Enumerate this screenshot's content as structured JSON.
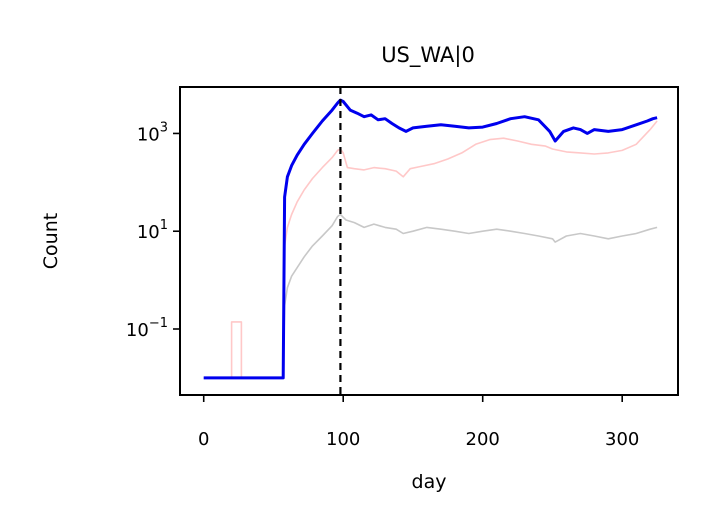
{
  "chart_data": {
    "type": "line",
    "title": "US_WA|0",
    "xlabel": "day",
    "ylabel": "Count",
    "xlim": [
      -17,
      340
    ],
    "ylim_log10": [
      -2.35,
      3.95
    ],
    "yscale": "log",
    "x_ticks": [
      0,
      100,
      200,
      300
    ],
    "x_tick_labels": [
      "0",
      "100",
      "200",
      "300"
    ],
    "y_ticks_log10": [
      -1,
      1,
      3
    ],
    "y_tick_labels": [
      {
        "base": "10",
        "exp": "−1"
      },
      {
        "base": "10",
        "exp": "1"
      },
      {
        "base": "10",
        "exp": "3"
      }
    ],
    "vline": {
      "x": 98,
      "style": "dashed",
      "color": "#000000"
    },
    "grid": false,
    "legend": "none",
    "series": [
      {
        "color": "#c8c8c8",
        "line_width": 1.6,
        "points": [
          [
            0,
            0.01
          ],
          [
            57,
            0.01
          ],
          [
            58,
            0.3
          ],
          [
            60,
            0.7
          ],
          [
            63,
            1.2
          ],
          [
            67,
            1.8
          ],
          [
            72,
            3.0
          ],
          [
            78,
            5.0
          ],
          [
            85,
            8.0
          ],
          [
            92,
            13
          ],
          [
            96,
            20
          ],
          [
            98,
            22
          ],
          [
            102,
            17
          ],
          [
            108,
            15
          ],
          [
            115,
            12
          ],
          [
            122,
            14
          ],
          [
            130,
            12
          ],
          [
            138,
            11
          ],
          [
            143,
            9
          ],
          [
            150,
            10
          ],
          [
            160,
            12
          ],
          [
            170,
            11
          ],
          [
            180,
            10
          ],
          [
            190,
            9
          ],
          [
            200,
            10
          ],
          [
            210,
            11
          ],
          [
            220,
            10
          ],
          [
            230,
            9
          ],
          [
            240,
            8
          ],
          [
            250,
            7
          ],
          [
            252,
            6
          ],
          [
            260,
            8
          ],
          [
            270,
            9
          ],
          [
            280,
            8
          ],
          [
            290,
            7
          ],
          [
            300,
            8
          ],
          [
            310,
            9
          ],
          [
            320,
            11
          ],
          [
            325,
            12
          ]
        ]
      },
      {
        "color": "#ffc8c8",
        "line_width": 1.6,
        "points": [
          [
            0,
            0.01
          ],
          [
            20,
            0.01
          ],
          [
            20,
            0.14
          ],
          [
            27,
            0.14
          ],
          [
            27,
            0.01
          ],
          [
            57,
            0.01
          ],
          [
            58,
            5
          ],
          [
            60,
            12
          ],
          [
            63,
            22
          ],
          [
            67,
            40
          ],
          [
            72,
            70
          ],
          [
            78,
            120
          ],
          [
            85,
            200
          ],
          [
            92,
            320
          ],
          [
            96,
            450
          ],
          [
            98,
            480
          ],
          [
            100,
            400
          ],
          [
            103,
            200
          ],
          [
            108,
            190
          ],
          [
            115,
            180
          ],
          [
            122,
            200
          ],
          [
            130,
            190
          ],
          [
            138,
            170
          ],
          [
            143,
            130
          ],
          [
            148,
            190
          ],
          [
            155,
            210
          ],
          [
            165,
            240
          ],
          [
            175,
            300
          ],
          [
            185,
            400
          ],
          [
            195,
            600
          ],
          [
            205,
            750
          ],
          [
            215,
            800
          ],
          [
            225,
            700
          ],
          [
            235,
            600
          ],
          [
            245,
            550
          ],
          [
            250,
            480
          ],
          [
            253,
            460
          ],
          [
            260,
            420
          ],
          [
            270,
            400
          ],
          [
            280,
            380
          ],
          [
            290,
            400
          ],
          [
            300,
            450
          ],
          [
            310,
            600
          ],
          [
            320,
            1200
          ],
          [
            325,
            1800
          ]
        ]
      },
      {
        "color": "#0000ee",
        "line_width": 3.0,
        "points": [
          [
            0,
            0.01
          ],
          [
            57,
            0.01
          ],
          [
            58,
            50
          ],
          [
            60,
            130
          ],
          [
            63,
            220
          ],
          [
            67,
            360
          ],
          [
            72,
            600
          ],
          [
            78,
            1000
          ],
          [
            85,
            1800
          ],
          [
            92,
            3000
          ],
          [
            96,
            4200
          ],
          [
            98,
            4800
          ],
          [
            100,
            4500
          ],
          [
            105,
            3000
          ],
          [
            110,
            2600
          ],
          [
            115,
            2200
          ],
          [
            120,
            2400
          ],
          [
            125,
            1900
          ],
          [
            130,
            2000
          ],
          [
            135,
            1600
          ],
          [
            140,
            1300
          ],
          [
            145,
            1100
          ],
          [
            150,
            1300
          ],
          [
            160,
            1400
          ],
          [
            170,
            1500
          ],
          [
            180,
            1400
          ],
          [
            190,
            1300
          ],
          [
            200,
            1350
          ],
          [
            210,
            1600
          ],
          [
            220,
            2000
          ],
          [
            230,
            2200
          ],
          [
            240,
            1900
          ],
          [
            248,
            1100
          ],
          [
            252,
            700
          ],
          [
            258,
            1100
          ],
          [
            265,
            1300
          ],
          [
            270,
            1200
          ],
          [
            275,
            1000
          ],
          [
            280,
            1200
          ],
          [
            290,
            1100
          ],
          [
            300,
            1200
          ],
          [
            310,
            1500
          ],
          [
            318,
            1800
          ],
          [
            322,
            2000
          ],
          [
            325,
            2100
          ]
        ]
      }
    ]
  }
}
